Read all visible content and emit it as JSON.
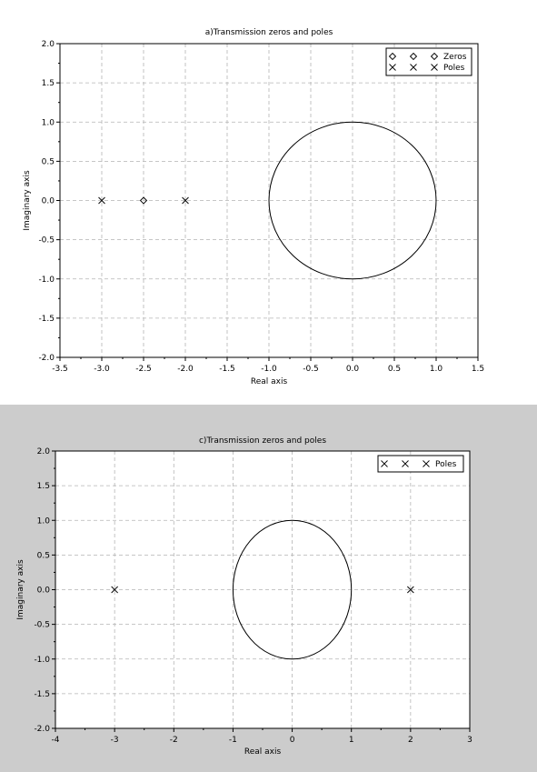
{
  "chart_data": [
    {
      "type": "scatter",
      "title": "a)Transmission zeros and poles",
      "xlabel": "Real axis",
      "ylabel": "Imaginary axis",
      "xlim": [
        -3.5,
        1.5
      ],
      "ylim": [
        -2.0,
        2.0
      ],
      "xticks": [
        -3.5,
        -3.0,
        -2.5,
        -2.0,
        -1.5,
        -1.0,
        -0.5,
        0.0,
        0.5,
        1.0,
        1.5
      ],
      "xtick_labels": [
        "-3.5",
        "-3.0",
        "-2.5",
        "-2.0",
        "-1.5",
        "-1.0",
        "-0.5",
        "0.0",
        "0.5",
        "1.0",
        "1.5"
      ],
      "yticks": [
        -2.0,
        -1.5,
        -1.0,
        -0.5,
        0.0,
        0.5,
        1.0,
        1.5,
        2.0
      ],
      "ytick_labels": [
        "-2.0",
        "-1.5",
        "-1.0",
        "-0.5",
        "0.0",
        "0.5",
        "1.0",
        "1.5",
        "2.0"
      ],
      "grid": true,
      "legend_position": "top-right",
      "unit_circle": true,
      "series": [
        {
          "name": "Zeros",
          "marker": "diamond",
          "points": [
            [
              -2.5,
              0.0
            ]
          ]
        },
        {
          "name": "Poles",
          "marker": "x",
          "points": [
            [
              -3.0,
              0.0
            ],
            [
              -2.0,
              0.0
            ]
          ]
        }
      ]
    },
    {
      "type": "scatter",
      "title": "c)Transmission zeros and poles",
      "xlabel": "Real axis",
      "ylabel": "Imaginary axis",
      "xlim": [
        -4,
        3
      ],
      "ylim": [
        -2.0,
        2.0
      ],
      "xticks": [
        -4,
        -3,
        -2,
        -1,
        0,
        1,
        2,
        3
      ],
      "xtick_labels": [
        "-4",
        "-3",
        "-2",
        "-1",
        "0",
        "1",
        "2",
        "3"
      ],
      "yticks": [
        -2.0,
        -1.5,
        -1.0,
        -0.5,
        0.0,
        0.5,
        1.0,
        1.5,
        2.0
      ],
      "ytick_labels": [
        "-2.0",
        "-1.5",
        "-1.0",
        "-0.5",
        "0.0",
        "0.5",
        "1.0",
        "1.5",
        "2.0"
      ],
      "grid": true,
      "legend_position": "top-right",
      "unit_circle": true,
      "series": [
        {
          "name": "Poles",
          "marker": "x",
          "points": [
            [
              -3.0,
              0.0
            ],
            [
              2.0,
              0.0
            ]
          ]
        }
      ]
    }
  ]
}
